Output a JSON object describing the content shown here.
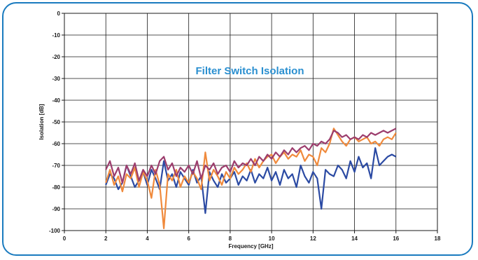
{
  "chart_data": {
    "type": "line",
    "title": "Filter Switch Isolation",
    "xlabel": "Frequency [GHz]",
    "ylabel": "Isolation [dB]",
    "xlim": [
      0,
      18
    ],
    "ylim": [
      -100,
      0
    ],
    "xticks": [
      0,
      2,
      4,
      6,
      8,
      10,
      12,
      14,
      16,
      18
    ],
    "yticks": [
      0,
      -10,
      -20,
      -30,
      -40,
      -50,
      -60,
      -70,
      -80,
      -90,
      -100
    ],
    "grid": true,
    "legend": "none",
    "series": [
      {
        "color": "#2b4aa3",
        "x": [
          2.0,
          2.2,
          2.4,
          2.6,
          2.8,
          3.0,
          3.2,
          3.4,
          3.6,
          3.8,
          4.0,
          4.2,
          4.4,
          4.6,
          4.8,
          5.0,
          5.2,
          5.4,
          5.6,
          5.8,
          6.0,
          6.2,
          6.4,
          6.6,
          6.8,
          7.0,
          7.2,
          7.4,
          7.6,
          7.8,
          8.0,
          8.2,
          8.4,
          8.6,
          8.8,
          9.0,
          9.2,
          9.4,
          9.6,
          9.8,
          10.0,
          10.2,
          10.4,
          10.6,
          10.8,
          11.0,
          11.2,
          11.4,
          11.6,
          11.8,
          12.0,
          12.2,
          12.4,
          12.6,
          12.8,
          13.0,
          13.2,
          13.4,
          13.6,
          13.8,
          14.0,
          14.2,
          14.4,
          14.6,
          14.8,
          15.0,
          15.2,
          15.4,
          15.6,
          15.8,
          16.0
        ],
        "y": [
          -79,
          -74,
          -76,
          -81,
          -78,
          -70,
          -75,
          -80,
          -77,
          -73,
          -79,
          -72,
          -76,
          -81,
          -68,
          -77,
          -74,
          -80,
          -73,
          -76,
          -79,
          -72,
          -78,
          -75,
          -92,
          -73,
          -77,
          -80,
          -74,
          -78,
          -76,
          -73,
          -79,
          -75,
          -77,
          -72,
          -78,
          -74,
          -76,
          -71,
          -77,
          -73,
          -79,
          -72,
          -76,
          -74,
          -80,
          -70,
          -75,
          -78,
          -73,
          -76,
          -90,
          -72,
          -74,
          -75,
          -70,
          -72,
          -76,
          -68,
          -73,
          -66,
          -71,
          -69,
          -76,
          -62,
          -70,
          -68,
          -66,
          -65,
          -66
        ]
      },
      {
        "color": "#f08a3c",
        "x": [
          2.0,
          2.2,
          2.4,
          2.6,
          2.8,
          3.0,
          3.2,
          3.4,
          3.6,
          3.8,
          4.0,
          4.2,
          4.4,
          4.6,
          4.8,
          5.0,
          5.2,
          5.4,
          5.6,
          5.8,
          6.0,
          6.2,
          6.4,
          6.6,
          6.8,
          7.0,
          7.2,
          7.4,
          7.6,
          7.8,
          8.0,
          8.2,
          8.4,
          8.6,
          8.8,
          9.0,
          9.2,
          9.4,
          9.6,
          9.8,
          10.0,
          10.2,
          10.4,
          10.6,
          10.8,
          11.0,
          11.2,
          11.4,
          11.6,
          11.8,
          12.0,
          12.2,
          12.4,
          12.6,
          12.8,
          13.0,
          13.2,
          13.4,
          13.6,
          13.8,
          14.0,
          14.2,
          14.4,
          14.6,
          14.8,
          15.0,
          15.2,
          15.4,
          15.6,
          15.8,
          16.0
        ],
        "y": [
          -78,
          -72,
          -79,
          -75,
          -82,
          -74,
          -76,
          -71,
          -80,
          -73,
          -77,
          -85,
          -72,
          -79,
          -99,
          -74,
          -77,
          -72,
          -80,
          -75,
          -78,
          -73,
          -76,
          -81,
          -64,
          -77,
          -72,
          -75,
          -79,
          -73,
          -76,
          -71,
          -74,
          -72,
          -69,
          -73,
          -67,
          -71,
          -68,
          -66,
          -65,
          -69,
          -66,
          -64,
          -67,
          -65,
          -66,
          -63,
          -68,
          -65,
          -66,
          -70,
          -62,
          -64,
          -60,
          -53,
          -56,
          -59,
          -61,
          -58,
          -57,
          -59,
          -58,
          -57,
          -60,
          -59,
          -61,
          -58,
          -57,
          -58,
          -55
        ]
      },
      {
        "color": "#9c3d6d",
        "x": [
          2.0,
          2.2,
          2.4,
          2.6,
          2.8,
          3.0,
          3.2,
          3.4,
          3.6,
          3.8,
          4.0,
          4.2,
          4.4,
          4.6,
          4.8,
          5.0,
          5.2,
          5.4,
          5.6,
          5.8,
          6.0,
          6.2,
          6.4,
          6.6,
          6.8,
          7.0,
          7.2,
          7.4,
          7.6,
          7.8,
          8.0,
          8.2,
          8.4,
          8.6,
          8.8,
          9.0,
          9.2,
          9.4,
          9.6,
          9.8,
          10.0,
          10.2,
          10.4,
          10.6,
          10.8,
          11.0,
          11.2,
          11.4,
          11.6,
          11.8,
          12.0,
          12.2,
          12.4,
          12.6,
          12.8,
          13.0,
          13.2,
          13.4,
          13.6,
          13.8,
          14.0,
          14.2,
          14.4,
          14.6,
          14.8,
          15.0,
          15.2,
          15.4,
          15.6,
          15.8,
          16.0
        ],
        "y": [
          -72,
          -68,
          -75,
          -71,
          -78,
          -70,
          -74,
          -69,
          -77,
          -72,
          -75,
          -70,
          -74,
          -68,
          -66,
          -72,
          -69,
          -75,
          -71,
          -73,
          -70,
          -74,
          -68,
          -76,
          -70,
          -72,
          -69,
          -74,
          -71,
          -70,
          -73,
          -68,
          -71,
          -69,
          -70,
          -67,
          -70,
          -66,
          -68,
          -65,
          -67,
          -64,
          -66,
          -63,
          -65,
          -62,
          -64,
          -62,
          -61,
          -63,
          -60,
          -61,
          -59,
          -60,
          -58,
          -54,
          -55,
          -57,
          -56,
          -58,
          -57,
          -58,
          -56,
          -57,
          -55,
          -56,
          -55,
          -54,
          -55,
          -54,
          -53
        ]
      }
    ]
  }
}
